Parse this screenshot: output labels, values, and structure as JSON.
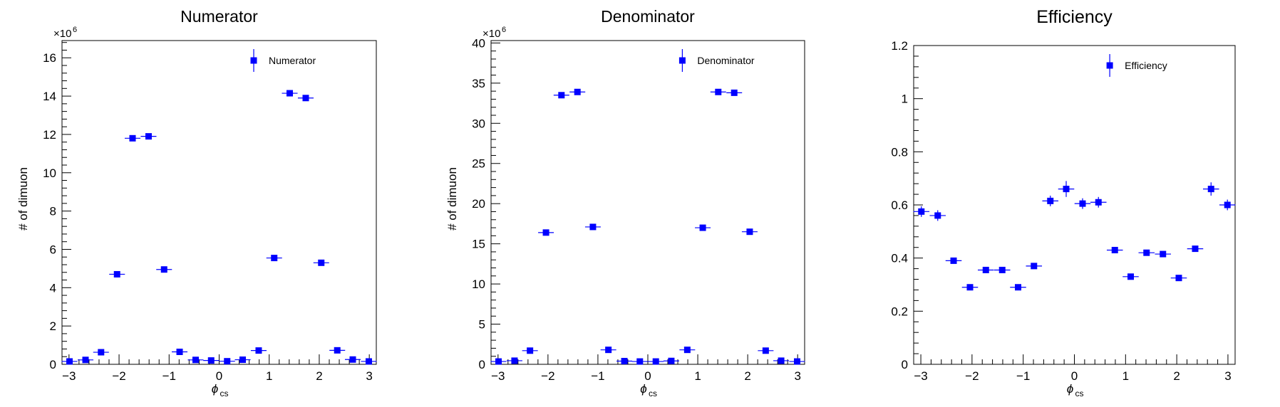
{
  "chart_data": [
    {
      "type": "scatter",
      "title": "Numerator",
      "xlabel": "ϕ",
      "xlabel_sub": "cs",
      "ylabel": "# of dimuon",
      "exponent_label": "×10",
      "exponent_power": "6",
      "xlim": [
        -3.14,
        3.14
      ],
      "ylim": [
        0,
        16.9
      ],
      "xticks": [
        -3,
        -2,
        -1,
        0,
        1,
        2,
        3
      ],
      "yticks": [
        0,
        2,
        4,
        6,
        8,
        10,
        12,
        14,
        16
      ],
      "series": [
        {
          "name": "Numerator",
          "color": "#0000ff",
          "x": [
            -2.99,
            -2.67,
            -2.36,
            -2.04,
            -1.73,
            -1.41,
            -1.1,
            -0.79,
            -0.47,
            -0.16,
            0.16,
            0.47,
            0.79,
            1.1,
            1.41,
            1.73,
            2.04,
            2.36,
            2.67,
            2.99
          ],
          "y": [
            0.15,
            0.23,
            0.63,
            4.7,
            11.8,
            11.9,
            4.95,
            0.65,
            0.23,
            0.2,
            0.16,
            0.24,
            0.72,
            5.55,
            14.15,
            13.9,
            5.3,
            0.73,
            0.25,
            0.15
          ],
          "yerr": [
            0,
            0,
            0,
            0,
            0,
            0,
            0,
            0,
            0,
            0,
            0,
            0,
            0,
            0,
            0,
            0,
            0,
            0,
            0,
            0
          ]
        }
      ],
      "legend_position": "top-right"
    },
    {
      "type": "scatter",
      "title": "Denominator",
      "xlabel": "ϕ",
      "xlabel_sub": "cs",
      "ylabel": "# of dimuon",
      "exponent_label": "×10",
      "exponent_power": "6",
      "xlim": [
        -3.14,
        3.14
      ],
      "ylim": [
        0,
        40.3
      ],
      "xticks": [
        -3,
        -2,
        -1,
        0,
        1,
        2,
        3
      ],
      "yticks": [
        0,
        5,
        10,
        15,
        20,
        25,
        30,
        35,
        40
      ],
      "series": [
        {
          "name": "Denominator",
          "color": "#0000ff",
          "x": [
            -2.99,
            -2.67,
            -2.36,
            -2.04,
            -1.73,
            -1.41,
            -1.1,
            -0.79,
            -0.47,
            -0.16,
            0.16,
            0.47,
            0.79,
            1.1,
            1.41,
            1.73,
            2.04,
            2.36,
            2.67,
            2.99
          ],
          "y": [
            0.35,
            0.45,
            1.7,
            16.4,
            33.5,
            33.9,
            17.1,
            1.8,
            0.4,
            0.35,
            0.35,
            0.42,
            1.8,
            17.0,
            33.9,
            33.8,
            16.5,
            1.7,
            0.45,
            0.35
          ],
          "yerr": [
            0,
            0,
            0,
            0,
            0,
            0,
            0,
            0,
            0,
            0,
            0,
            0,
            0,
            0,
            0,
            0,
            0,
            0,
            0,
            0
          ]
        }
      ],
      "legend_position": "top-right"
    },
    {
      "type": "scatter",
      "title": "Efficiency",
      "xlabel": "ϕ",
      "xlabel_sub": "cs",
      "ylabel": "",
      "exponent_label": "",
      "exponent_power": "",
      "xlim": [
        -3.14,
        3.14
      ],
      "ylim": [
        0,
        1.2
      ],
      "xticks": [
        -3,
        -2,
        -1,
        0,
        1,
        2,
        3
      ],
      "yticks": [
        0,
        0.2,
        0.4,
        0.6,
        0.8,
        1,
        1.2
      ],
      "series": [
        {
          "name": "Efficiency",
          "color": "#0000ff",
          "x": [
            -2.99,
            -2.67,
            -2.36,
            -2.04,
            -1.73,
            -1.41,
            -1.1,
            -0.79,
            -0.47,
            -0.16,
            0.16,
            0.47,
            0.79,
            1.1,
            1.41,
            1.73,
            2.04,
            2.36,
            2.67,
            2.99
          ],
          "y": [
            0.575,
            0.56,
            0.39,
            0.29,
            0.355,
            0.355,
            0.29,
            0.37,
            0.615,
            0.66,
            0.605,
            0.61,
            0.43,
            0.33,
            0.42,
            0.415,
            0.325,
            0.435,
            0.66,
            0.6
          ],
          "yerr": [
            0.02,
            0.02,
            0.01,
            0.01,
            0.01,
            0.01,
            0.01,
            0.01,
            0.02,
            0.03,
            0.02,
            0.02,
            0.01,
            0.01,
            0.01,
            0.01,
            0.01,
            0.01,
            0.025,
            0.02
          ]
        }
      ],
      "legend_position": "top-right"
    }
  ]
}
